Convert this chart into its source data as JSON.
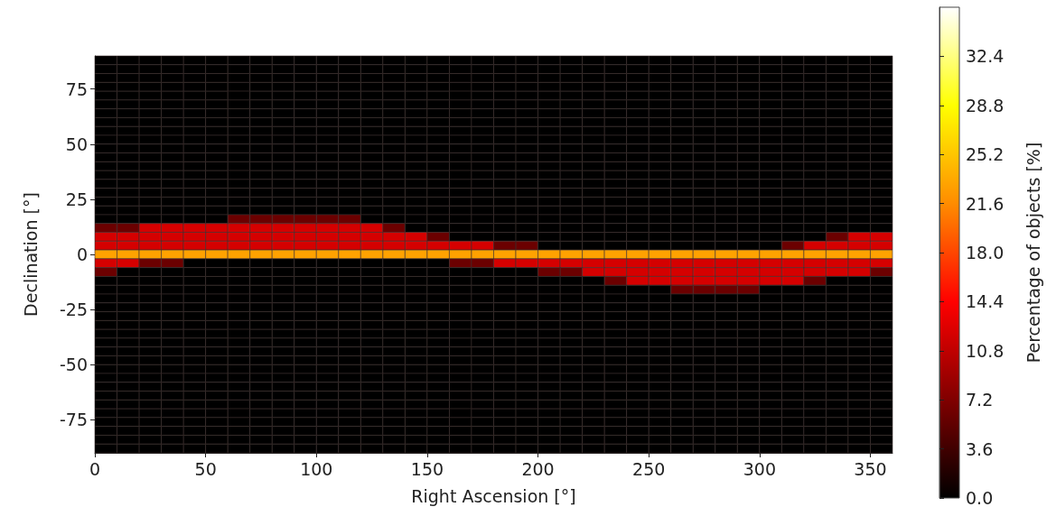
{
  "chart_data": {
    "type": "heatmap",
    "xlabel": "Right Ascension [°]",
    "ylabel": "Declination [°]",
    "clabel": "Percentage of objects [%]",
    "xlim": [
      0,
      360
    ],
    "xticks": [
      0,
      50,
      100,
      150,
      200,
      250,
      300,
      350
    ],
    "ylim": [
      -90,
      90
    ],
    "yticks": [
      -75,
      -50,
      -25,
      0,
      25,
      50,
      75
    ],
    "clim": [
      0,
      36
    ],
    "cticks": [
      {
        "value": 0,
        "label": "0.0"
      },
      3.6,
      7.2,
      10.8,
      14.4,
      {
        "value": 18,
        "label": "18.0"
      },
      21.6,
      25.2,
      28.8,
      32.4
    ],
    "x": [
      5,
      15,
      25,
      35,
      45,
      55,
      65,
      75,
      85,
      95,
      105,
      115,
      125,
      135,
      145,
      155,
      165,
      175,
      185,
      195,
      205,
      215,
      225,
      235,
      245,
      255,
      265,
      275,
      285,
      295,
      305,
      315,
      325,
      335,
      345,
      355
    ],
    "y": [
      88,
      84,
      80,
      76,
      72,
      68,
      64,
      60,
      56,
      52,
      48,
      44,
      40,
      36,
      32,
      28,
      24,
      20,
      16,
      12,
      8,
      4,
      0,
      -4,
      -8,
      -12,
      -16,
      -20,
      -24,
      -28,
      -32,
      -36,
      -40,
      -44,
      -48,
      -52,
      -56,
      -60,
      -64,
      -68,
      -72,
      -76,
      -80,
      -84,
      -88
    ],
    "cells": [
      [
        0,
        0,
        0,
        0,
        0,
        0,
        0,
        0,
        0,
        0,
        0,
        0,
        0,
        0,
        0,
        0,
        0,
        0,
        0,
        0,
        0,
        0,
        0,
        0,
        0,
        0,
        0,
        0,
        0,
        0,
        0,
        0,
        0,
        0,
        0,
        0
      ],
      [
        0,
        0,
        0,
        0,
        0,
        0,
        0,
        0,
        0,
        0,
        0,
        0,
        0,
        0,
        0,
        0,
        0,
        0,
        0,
        0,
        0,
        0,
        0,
        0,
        0,
        0,
        0,
        0,
        0,
        0,
        0,
        0,
        0,
        0,
        0,
        0
      ],
      [
        0,
        0,
        0,
        0,
        0,
        0,
        0,
        0,
        0,
        0,
        0,
        0,
        0,
        0,
        0,
        0,
        0,
        0,
        0,
        0,
        0,
        0,
        0,
        0,
        0,
        0,
        0,
        0,
        0,
        0,
        0,
        0,
        0,
        0,
        0,
        0
      ],
      [
        0,
        0,
        0,
        0,
        0,
        0,
        0,
        0,
        0,
        0,
        0,
        0,
        0,
        0,
        0,
        0,
        0,
        0,
        0,
        0,
        0,
        0,
        0,
        0,
        0,
        0,
        0,
        0,
        0,
        0,
        0,
        0,
        0,
        0,
        0,
        0
      ],
      [
        0,
        0,
        0,
        0,
        0,
        0,
        0,
        0,
        0,
        0,
        0,
        0,
        0,
        0,
        0,
        0,
        0,
        0,
        0,
        0,
        0,
        0,
        0,
        0,
        0,
        0,
        0,
        0,
        0,
        0,
        0,
        0,
        0,
        0,
        0,
        0
      ],
      [
        0,
        0,
        0,
        0,
        0,
        0,
        0,
        0,
        0,
        0,
        0,
        0,
        0,
        0,
        0,
        0,
        0,
        0,
        0,
        0,
        0,
        0,
        0,
        0,
        0,
        0,
        0,
        0,
        0,
        0,
        0,
        0,
        0,
        0,
        0,
        0
      ],
      [
        0,
        0,
        0,
        0,
        0,
        0,
        0,
        0,
        0,
        0,
        0,
        0,
        0,
        0,
        0,
        0,
        0,
        0,
        0,
        0,
        0,
        0,
        0,
        0,
        0,
        0,
        0,
        0,
        0,
        0,
        0,
        0,
        0,
        0,
        0,
        0
      ],
      [
        0,
        0,
        0,
        0,
        0,
        0,
        0,
        0,
        0,
        0,
        0,
        0,
        0,
        0,
        0,
        0,
        0,
        0,
        0,
        0,
        0,
        0,
        0,
        0,
        0,
        0,
        0,
        0,
        0,
        0,
        0,
        0,
        0,
        0,
        0,
        0
      ],
      [
        0,
        0,
        0,
        0,
        0,
        0,
        0,
        0,
        0,
        0,
        0,
        0,
        0,
        0,
        0,
        0,
        0,
        0,
        0,
        0,
        0,
        0,
        0,
        0,
        0,
        0,
        0,
        0,
        0,
        0,
        0,
        0,
        0,
        0,
        0,
        0
      ],
      [
        0,
        0,
        0,
        0,
        0,
        0,
        0,
        0,
        0,
        0,
        0,
        0,
        0,
        0,
        0,
        0,
        0,
        0,
        0,
        0,
        0,
        0,
        0,
        0,
        0,
        0,
        0,
        0,
        0,
        0,
        0,
        0,
        0,
        0,
        0,
        0
      ],
      [
        0,
        0,
        0,
        0,
        0,
        0,
        0,
        0,
        0,
        0,
        0,
        0,
        0,
        0,
        0,
        0,
        0,
        0,
        0,
        0,
        0,
        0,
        0,
        0,
        0,
        0,
        0,
        0,
        0,
        0,
        0,
        0,
        0,
        0,
        0,
        0
      ],
      [
        0,
        0,
        0,
        0,
        0,
        0,
        0,
        0,
        0,
        0,
        0,
        0,
        0,
        0,
        0,
        0,
        0,
        0,
        0,
        0,
        0,
        0,
        0,
        0,
        0,
        0,
        0,
        0,
        0,
        0,
        0,
        0,
        0,
        0,
        0,
        0
      ],
      [
        0,
        0,
        0,
        0,
        0,
        0,
        0,
        0,
        0,
        0,
        0,
        0,
        0,
        0,
        0,
        0,
        0,
        0,
        0,
        0,
        0,
        0,
        0,
        0,
        0,
        0,
        0,
        0,
        0,
        0,
        0,
        0,
        0,
        0,
        0,
        0
      ],
      [
        0,
        0,
        0,
        0,
        0,
        0,
        0,
        0,
        0,
        0,
        0,
        0,
        0,
        0,
        0,
        0,
        0,
        0,
        0,
        0,
        0,
        0,
        0,
        0,
        0,
        0,
        0,
        0,
        0,
        0,
        0,
        0,
        0,
        0,
        0,
        0
      ],
      [
        0,
        0,
        0,
        0,
        0,
        0,
        0,
        0,
        0,
        0,
        0,
        0,
        0,
        0,
        0,
        0,
        0,
        0,
        0,
        0,
        0,
        0,
        0,
        0,
        0,
        0,
        0,
        0,
        0,
        0,
        0,
        0,
        0,
        0,
        0,
        0
      ],
      [
        0,
        0,
        0,
        0,
        0,
        0,
        0,
        0,
        0,
        0,
        0,
        0,
        0,
        0,
        0,
        0,
        0,
        0,
        0,
        0,
        0,
        0,
        0,
        0,
        0,
        0,
        0,
        0,
        0,
        0,
        0,
        0,
        0,
        0,
        0,
        0
      ],
      [
        0,
        0,
        0,
        0,
        0,
        0,
        0,
        0,
        0,
        0,
        0,
        0,
        0,
        0,
        0,
        0,
        0,
        0,
        0,
        0,
        0,
        0,
        0,
        0,
        0,
        0,
        0,
        0,
        0,
        0,
        0,
        0,
        0,
        0,
        0,
        0
      ],
      [
        0,
        0,
        0,
        0,
        0,
        0,
        0,
        0,
        0,
        0,
        0,
        0,
        0,
        0,
        0,
        0,
        0,
        0,
        0,
        0,
        0,
        0,
        0,
        0,
        0,
        0,
        0,
        0,
        0,
        0,
        0,
        0,
        0,
        0,
        0,
        0
      ],
      [
        0,
        0,
        0,
        0,
        0,
        0,
        6,
        6,
        6,
        6,
        6,
        6,
        0,
        0,
        0,
        0,
        0,
        0,
        0,
        0,
        0,
        0,
        0,
        0,
        0,
        0,
        0,
        0,
        0,
        0,
        0,
        0,
        0,
        0,
        0,
        0
      ],
      [
        6,
        6,
        12,
        12,
        12,
        12,
        12,
        12,
        12,
        12,
        12,
        12,
        12,
        6,
        0,
        0,
        0,
        0,
        0,
        0,
        0,
        0,
        0,
        0,
        0,
        0,
        0,
        0,
        0,
        0,
        0,
        0,
        0,
        0,
        0,
        0
      ],
      [
        12,
        12,
        12,
        12,
        12,
        12,
        12,
        12,
        12,
        12,
        12,
        12,
        12,
        12,
        12,
        6,
        0,
        0,
        0,
        0,
        0,
        0,
        0,
        0,
        0,
        0,
        0,
        0,
        0,
        0,
        0,
        0,
        0,
        6,
        12,
        12
      ],
      [
        12,
        12,
        12,
        12,
        12,
        12,
        12,
        12,
        12,
        12,
        12,
        12,
        12,
        12,
        12,
        12,
        12,
        12,
        6,
        6,
        0,
        0,
        0,
        0,
        0,
        0,
        0,
        0,
        0,
        0,
        0,
        6,
        12,
        12,
        12,
        12
      ],
      [
        23,
        23,
        23,
        23,
        23,
        23,
        23,
        23,
        23,
        23,
        23,
        23,
        23,
        23,
        23,
        23,
        23,
        23,
        23,
        23,
        23,
        23,
        23,
        23,
        23,
        23,
        23,
        23,
        23,
        23,
        23,
        23,
        23,
        23,
        23,
        23
      ],
      [
        12,
        12,
        6,
        6,
        0,
        0,
        0,
        0,
        0,
        0,
        0,
        0,
        0,
        0,
        0,
        0,
        6,
        6,
        12,
        12,
        12,
        12,
        12,
        12,
        12,
        12,
        12,
        12,
        12,
        12,
        12,
        12,
        12,
        12,
        12,
        12
      ],
      [
        6,
        0,
        0,
        0,
        0,
        0,
        0,
        0,
        0,
        0,
        0,
        0,
        0,
        0,
        0,
        0,
        0,
        0,
        0,
        0,
        6,
        6,
        12,
        12,
        12,
        12,
        12,
        12,
        12,
        12,
        12,
        12,
        12,
        12,
        12,
        6
      ],
      [
        0,
        0,
        0,
        0,
        0,
        0,
        0,
        0,
        0,
        0,
        0,
        0,
        0,
        0,
        0,
        0,
        0,
        0,
        0,
        0,
        0,
        0,
        0,
        6,
        12,
        12,
        12,
        12,
        12,
        12,
        12,
        12,
        6,
        0,
        0,
        0
      ],
      [
        0,
        0,
        0,
        0,
        0,
        0,
        0,
        0,
        0,
        0,
        0,
        0,
        0,
        0,
        0,
        0,
        0,
        0,
        0,
        0,
        0,
        0,
        0,
        0,
        0,
        0,
        6,
        6,
        6,
        6,
        0,
        0,
        0,
        0,
        0,
        0
      ],
      [
        0,
        0,
        0,
        0,
        0,
        0,
        0,
        0,
        0,
        0,
        0,
        0,
        0,
        0,
        0,
        0,
        0,
        0,
        0,
        0,
        0,
        0,
        0,
        0,
        0,
        0,
        0,
        0,
        0,
        0,
        0,
        0,
        0,
        0,
        0,
        0
      ],
      [
        0,
        0,
        0,
        0,
        0,
        0,
        0,
        0,
        0,
        0,
        0,
        0,
        0,
        0,
        0,
        0,
        0,
        0,
        0,
        0,
        0,
        0,
        0,
        0,
        0,
        0,
        0,
        0,
        0,
        0,
        0,
        0,
        0,
        0,
        0,
        0
      ],
      [
        0,
        0,
        0,
        0,
        0,
        0,
        0,
        0,
        0,
        0,
        0,
        0,
        0,
        0,
        0,
        0,
        0,
        0,
        0,
        0,
        0,
        0,
        0,
        0,
        0,
        0,
        0,
        0,
        0,
        0,
        0,
        0,
        0,
        0,
        0,
        0
      ],
      [
        0,
        0,
        0,
        0,
        0,
        0,
        0,
        0,
        0,
        0,
        0,
        0,
        0,
        0,
        0,
        0,
        0,
        0,
        0,
        0,
        0,
        0,
        0,
        0,
        0,
        0,
        0,
        0,
        0,
        0,
        0,
        0,
        0,
        0,
        0,
        0
      ],
      [
        0,
        0,
        0,
        0,
        0,
        0,
        0,
        0,
        0,
        0,
        0,
        0,
        0,
        0,
        0,
        0,
        0,
        0,
        0,
        0,
        0,
        0,
        0,
        0,
        0,
        0,
        0,
        0,
        0,
        0,
        0,
        0,
        0,
        0,
        0,
        0
      ],
      [
        0,
        0,
        0,
        0,
        0,
        0,
        0,
        0,
        0,
        0,
        0,
        0,
        0,
        0,
        0,
        0,
        0,
        0,
        0,
        0,
        0,
        0,
        0,
        0,
        0,
        0,
        0,
        0,
        0,
        0,
        0,
        0,
        0,
        0,
        0,
        0
      ],
      [
        0,
        0,
        0,
        0,
        0,
        0,
        0,
        0,
        0,
        0,
        0,
        0,
        0,
        0,
        0,
        0,
        0,
        0,
        0,
        0,
        0,
        0,
        0,
        0,
        0,
        0,
        0,
        0,
        0,
        0,
        0,
        0,
        0,
        0,
        0,
        0
      ],
      [
        0,
        0,
        0,
        0,
        0,
        0,
        0,
        0,
        0,
        0,
        0,
        0,
        0,
        0,
        0,
        0,
        0,
        0,
        0,
        0,
        0,
        0,
        0,
        0,
        0,
        0,
        0,
        0,
        0,
        0,
        0,
        0,
        0,
        0,
        0,
        0
      ],
      [
        0,
        0,
        0,
        0,
        0,
        0,
        0,
        0,
        0,
        0,
        0,
        0,
        0,
        0,
        0,
        0,
        0,
        0,
        0,
        0,
        0,
        0,
        0,
        0,
        0,
        0,
        0,
        0,
        0,
        0,
        0,
        0,
        0,
        0,
        0,
        0
      ],
      [
        0,
        0,
        0,
        0,
        0,
        0,
        0,
        0,
        0,
        0,
        0,
        0,
        0,
        0,
        0,
        0,
        0,
        0,
        0,
        0,
        0,
        0,
        0,
        0,
        0,
        0,
        0,
        0,
        0,
        0,
        0,
        0,
        0,
        0,
        0,
        0
      ],
      [
        0,
        0,
        0,
        0,
        0,
        0,
        0,
        0,
        0,
        0,
        0,
        0,
        0,
        0,
        0,
        0,
        0,
        0,
        0,
        0,
        0,
        0,
        0,
        0,
        0,
        0,
        0,
        0,
        0,
        0,
        0,
        0,
        0,
        0,
        0,
        0
      ],
      [
        0,
        0,
        0,
        0,
        0,
        0,
        0,
        0,
        0,
        0,
        0,
        0,
        0,
        0,
        0,
        0,
        0,
        0,
        0,
        0,
        0,
        0,
        0,
        0,
        0,
        0,
        0,
        0,
        0,
        0,
        0,
        0,
        0,
        0,
        0,
        0
      ],
      [
        0,
        0,
        0,
        0,
        0,
        0,
        0,
        0,
        0,
        0,
        0,
        0,
        0,
        0,
        0,
        0,
        0,
        0,
        0,
        0,
        0,
        0,
        0,
        0,
        0,
        0,
        0,
        0,
        0,
        0,
        0,
        0,
        0,
        0,
        0,
        0
      ],
      [
        0,
        0,
        0,
        0,
        0,
        0,
        0,
        0,
        0,
        0,
        0,
        0,
        0,
        0,
        0,
        0,
        0,
        0,
        0,
        0,
        0,
        0,
        0,
        0,
        0,
        0,
        0,
        0,
        0,
        0,
        0,
        0,
        0,
        0,
        0,
        0
      ],
      [
        0,
        0,
        0,
        0,
        0,
        0,
        0,
        0,
        0,
        0,
        0,
        0,
        0,
        0,
        0,
        0,
        0,
        0,
        0,
        0,
        0,
        0,
        0,
        0,
        0,
        0,
        0,
        0,
        0,
        0,
        0,
        0,
        0,
        0,
        0,
        0
      ],
      [
        0,
        0,
        0,
        0,
        0,
        0,
        0,
        0,
        0,
        0,
        0,
        0,
        0,
        0,
        0,
        0,
        0,
        0,
        0,
        0,
        0,
        0,
        0,
        0,
        0,
        0,
        0,
        0,
        0,
        0,
        0,
        0,
        0,
        0,
        0,
        0
      ],
      [
        0,
        0,
        0,
        0,
        0,
        0,
        0,
        0,
        0,
        0,
        0,
        0,
        0,
        0,
        0,
        0,
        0,
        0,
        0,
        0,
        0,
        0,
        0,
        0,
        0,
        0,
        0,
        0,
        0,
        0,
        0,
        0,
        0,
        0,
        0,
        0
      ],
      [
        0,
        0,
        0,
        0,
        0,
        0,
        0,
        0,
        0,
        0,
        0,
        0,
        0,
        0,
        0,
        0,
        0,
        0,
        0,
        0,
        0,
        0,
        0,
        0,
        0,
        0,
        0,
        0,
        0,
        0,
        0,
        0,
        0,
        0,
        0,
        0
      ]
    ]
  }
}
